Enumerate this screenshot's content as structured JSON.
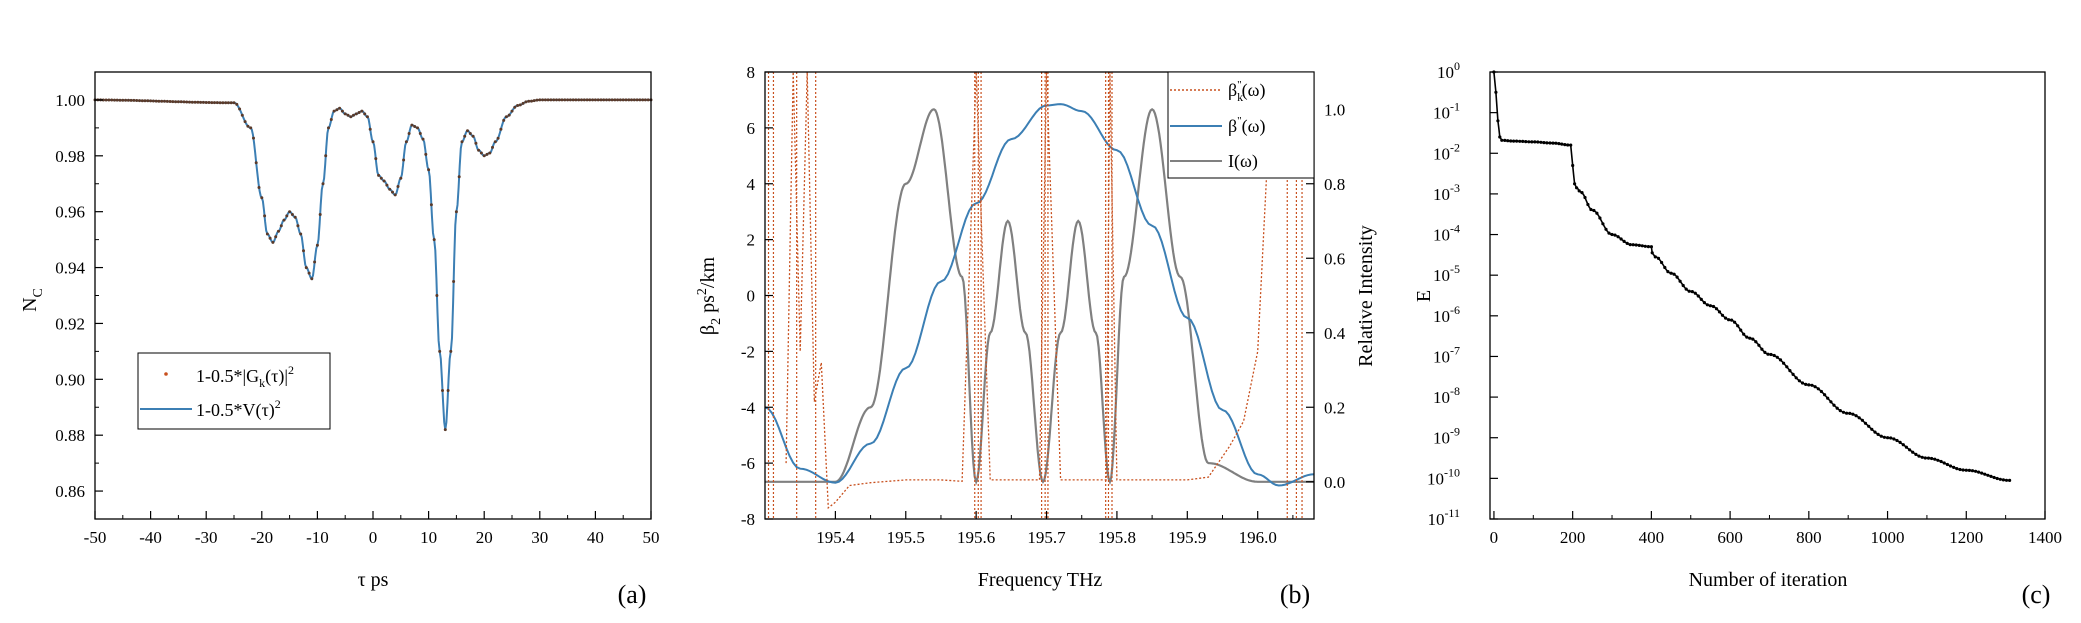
{
  "chart_data": [
    {
      "type": "line",
      "panel_label": "(a)",
      "xlabel": "τ ps",
      "ylabel": "N",
      "ylabel_sub": "C",
      "xlim": [
        -50,
        50
      ],
      "ylim": [
        0.85,
        1.01
      ],
      "xticks": [
        "-50",
        "-40",
        "-30",
        "-20",
        "-10",
        "0",
        "10",
        "20",
        "30",
        "40",
        "50"
      ],
      "yticks": [
        "0.86",
        "0.88",
        "0.90",
        "0.92",
        "0.94",
        "0.96",
        "0.98",
        "1.00"
      ],
      "legend": [
        "1-0.5*|G",
        "k",
        "(τ)|",
        "2",
        "1-0.5*V(τ)",
        "2"
      ],
      "series": [
        {
          "name": "1-0.5*|Gk(τ)|^2",
          "style": "dots",
          "color": "#c8501e",
          "x": [
            -50,
            -25,
            -22,
            -20,
            -19,
            -18,
            -17,
            -16,
            -15,
            -14,
            -13,
            -12,
            -11,
            -10,
            -9,
            -8,
            -7,
            -6,
            -5,
            -4,
            -3,
            -2,
            -1,
            0,
            1,
            2,
            3,
            4,
            5,
            6,
            7,
            8,
            9,
            10,
            11,
            12,
            13,
            14,
            15,
            16,
            17,
            18,
            19,
            20,
            21,
            22,
            24,
            26,
            28,
            30,
            50
          ],
          "y": [
            1.0,
            0.999,
            0.99,
            0.965,
            0.952,
            0.949,
            0.953,
            0.957,
            0.96,
            0.958,
            0.952,
            0.94,
            0.936,
            0.948,
            0.97,
            0.99,
            0.996,
            0.997,
            0.995,
            0.994,
            0.995,
            0.996,
            0.994,
            0.985,
            0.973,
            0.971,
            0.968,
            0.966,
            0.972,
            0.985,
            0.991,
            0.99,
            0.986,
            0.975,
            0.95,
            0.91,
            0.882,
            0.91,
            0.96,
            0.985,
            0.989,
            0.987,
            0.982,
            0.98,
            0.981,
            0.985,
            0.994,
            0.998,
            0.9995,
            1.0,
            1.0
          ]
        },
        {
          "name": "1-0.5*V(τ)^2",
          "style": "line",
          "color": "#3c7fb4",
          "x": [
            -50,
            -25,
            -22,
            -20,
            -19,
            -18,
            -17,
            -16,
            -15,
            -14,
            -13,
            -12,
            -11,
            -10,
            -9,
            -8,
            -7,
            -6,
            -5,
            -4,
            -3,
            -2,
            -1,
            0,
            1,
            2,
            3,
            4,
            5,
            6,
            7,
            8,
            9,
            10,
            11,
            12,
            13,
            14,
            15,
            16,
            17,
            18,
            19,
            20,
            21,
            22,
            24,
            26,
            28,
            30,
            50
          ],
          "y": [
            1.0,
            0.999,
            0.99,
            0.965,
            0.952,
            0.949,
            0.953,
            0.957,
            0.96,
            0.958,
            0.952,
            0.94,
            0.936,
            0.948,
            0.97,
            0.99,
            0.996,
            0.997,
            0.995,
            0.994,
            0.995,
            0.996,
            0.994,
            0.985,
            0.973,
            0.971,
            0.968,
            0.966,
            0.972,
            0.985,
            0.991,
            0.99,
            0.986,
            0.975,
            0.95,
            0.91,
            0.882,
            0.91,
            0.96,
            0.985,
            0.989,
            0.987,
            0.982,
            0.98,
            0.981,
            0.985,
            0.994,
            0.998,
            0.9995,
            1.0,
            1.0
          ]
        }
      ]
    },
    {
      "type": "line",
      "panel_label": "(b)",
      "xlabel": "Frequency THz",
      "ylabel": "β",
      "ylabel_sub": "2",
      "ylabel_rest": " ps",
      "ylabel_sup": "2",
      "ylabel_end": "/km",
      "y2label": "Relative Intensity",
      "xlim": [
        195.3,
        196.08
      ],
      "ylim": [
        -8,
        8
      ],
      "y2lim": [
        -0.1,
        1.1
      ],
      "xticks": [
        "195.4",
        "195.5",
        "195.6",
        "195.7",
        "195.8",
        "195.9",
        "196.0"
      ],
      "yticks": [
        "-8",
        "-6",
        "-4",
        "-2",
        "0",
        "2",
        "4",
        "6",
        "8"
      ],
      "y2ticks": [
        "0.0",
        "0.2",
        "0.4",
        "0.6",
        "0.8",
        "1.0"
      ],
      "legend": [
        "β",
        "k",
        "\"",
        "(ω)",
        "β",
        "\"",
        "(ω)",
        "I(ω)"
      ],
      "series": [
        {
          "name": "βk''(ω)",
          "style": "dotted",
          "color": "#c8501e",
          "axis": "left",
          "x": [
            195.33,
            195.34,
            195.35,
            195.36,
            195.37,
            195.38,
            195.39,
            195.4,
            195.42,
            195.45,
            195.5,
            195.55,
            195.58,
            195.6,
            195.62,
            195.66,
            195.69,
            195.7,
            195.72,
            195.76,
            195.785,
            195.79,
            195.8,
            195.85,
            195.9,
            195.93,
            195.96,
            195.98,
            196.0,
            196.02
          ],
          "y": [
            -6,
            8,
            -2,
            8,
            -3.8,
            -2.4,
            -7.6,
            -7.4,
            -6.8,
            -6.7,
            -6.6,
            -6.6,
            -6.65,
            8,
            -6.6,
            -6.6,
            -6.6,
            8,
            -6.6,
            -6.6,
            -6.6,
            8,
            -6.6,
            -6.6,
            -6.6,
            -6.5,
            -5.4,
            -4.5,
            -2,
            8
          ]
        },
        {
          "name": "β''(ω)",
          "style": "line",
          "color": "#3c7fb4",
          "axis": "left",
          "x": [
            195.3,
            195.35,
            195.4,
            195.45,
            195.5,
            195.55,
            195.6,
            195.65,
            195.7,
            195.72,
            195.75,
            195.8,
            195.85,
            195.9,
            195.95,
            196.0,
            196.03,
            196.08
          ],
          "y": [
            -4.0,
            -6.2,
            -6.7,
            -5.3,
            -2.6,
            0.5,
            3.3,
            5.6,
            6.8,
            6.85,
            6.6,
            5.2,
            2.5,
            -0.8,
            -4.1,
            -6.4,
            -6.8,
            -6.4
          ]
        },
        {
          "name": "I(ω)",
          "style": "line",
          "color": "#808080",
          "axis": "right",
          "x": [
            195.3,
            195.4,
            195.45,
            195.5,
            195.54,
            195.58,
            195.6,
            195.62,
            195.645,
            195.67,
            195.695,
            195.72,
            195.745,
            195.77,
            195.79,
            195.81,
            195.85,
            195.89,
            195.93,
            196.0,
            196.08
          ],
          "y": [
            0.0,
            0.0,
            0.2,
            0.8,
            1.0,
            0.55,
            0.0,
            0.4,
            0.7,
            0.4,
            0.0,
            0.4,
            0.7,
            0.4,
            0.0,
            0.55,
            1.0,
            0.55,
            0.05,
            0.0,
            0.0
          ]
        }
      ]
    },
    {
      "type": "line",
      "panel_label": "(c)",
      "xlabel": "Number of iteration",
      "ylabel": "E",
      "yscale": "log",
      "xlim": [
        -10,
        1400
      ],
      "ylim_exp": [
        -11,
        0
      ],
      "xticks": [
        "0",
        "200",
        "400",
        "600",
        "800",
        "1000",
        "1200",
        "1400"
      ],
      "ytick_base": "10",
      "ytick_exps": [
        "0",
        "-1",
        "-2",
        "-3",
        "-4",
        "-5",
        "-6",
        "-7",
        "-8",
        "-9",
        "-10",
        "-11"
      ],
      "series": [
        {
          "name": "E",
          "style": "line-dots",
          "color": "#000000",
          "x": [
            0,
            5,
            10,
            15,
            20,
            50,
            100,
            150,
            195,
            200,
            205,
            210,
            220,
            250,
            300,
            350,
            400,
            402,
            410,
            450,
            500,
            550,
            600,
            650,
            700,
            800,
            900,
            1000,
            1100,
            1200,
            1310
          ],
          "log10y": [
            0,
            -0.5,
            -1.2,
            -1.6,
            -1.68,
            -1.7,
            -1.72,
            -1.75,
            -1.8,
            -2.3,
            -2.75,
            -2.85,
            -2.95,
            -3.4,
            -4.0,
            -4.25,
            -4.3,
            -4.45,
            -4.55,
            -4.95,
            -5.4,
            -5.75,
            -6.1,
            -6.55,
            -6.95,
            -7.7,
            -8.4,
            -9.0,
            -9.5,
            -9.8,
            -10.05
          ]
        }
      ]
    }
  ]
}
